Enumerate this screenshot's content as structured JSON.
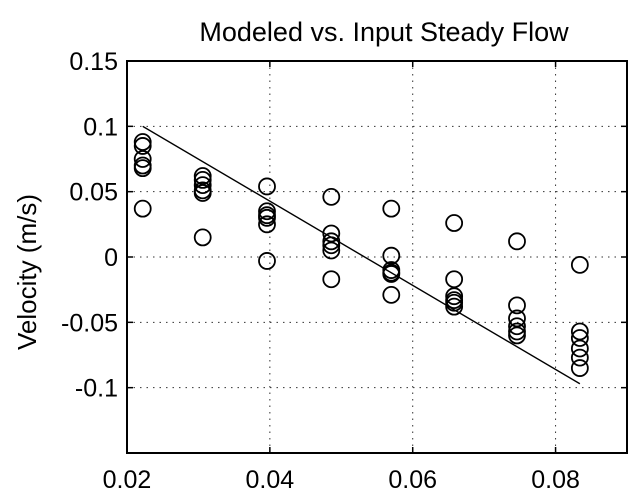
{
  "chart_data": {
    "type": "scatter",
    "title": "Modeled vs. Input Steady Flow",
    "xlabel": "",
    "ylabel": "Velocity (m/s)",
    "xlim": [
      0.02,
      0.09
    ],
    "ylim": [
      -0.15,
      0.15
    ],
    "xticks": [
      0.02,
      0.04,
      0.06,
      0.08
    ],
    "xtick_labels": [
      "0.02",
      "0.04",
      "0.06",
      "0.08"
    ],
    "yticks": [
      -0.1,
      -0.05,
      0,
      0.05,
      0.1,
      0.15
    ],
    "ytick_labels": [
      "-0.1",
      "-0.05",
      "0",
      "0.05",
      "0.1",
      "0.15"
    ],
    "grid": true,
    "series": [
      {
        "marker": "circle",
        "points": [
          [
            0.0222,
            0.088
          ],
          [
            0.0222,
            0.085
          ],
          [
            0.0222,
            0.075
          ],
          [
            0.0222,
            0.07
          ],
          [
            0.0222,
            0.068
          ],
          [
            0.0222,
            0.037
          ],
          [
            0.0306,
            0.062
          ],
          [
            0.0306,
            0.059
          ],
          [
            0.0306,
            0.055
          ],
          [
            0.0306,
            0.051
          ],
          [
            0.0306,
            0.049
          ],
          [
            0.0306,
            0.015
          ],
          [
            0.0396,
            0.054
          ],
          [
            0.0396,
            0.035
          ],
          [
            0.0396,
            0.032
          ],
          [
            0.0396,
            0.03
          ],
          [
            0.0396,
            0.025
          ],
          [
            0.0396,
            -0.003
          ],
          [
            0.0486,
            0.046
          ],
          [
            0.0486,
            0.018
          ],
          [
            0.0486,
            0.012
          ],
          [
            0.0486,
            0.009
          ],
          [
            0.0486,
            0.005
          ],
          [
            0.0486,
            -0.017
          ],
          [
            0.057,
            0.037
          ],
          [
            0.057,
            0.001
          ],
          [
            0.057,
            -0.01
          ],
          [
            0.057,
            -0.012
          ],
          [
            0.057,
            -0.013
          ],
          [
            0.057,
            -0.029
          ],
          [
            0.0658,
            0.026
          ],
          [
            0.0658,
            -0.017
          ],
          [
            0.0658,
            -0.03
          ],
          [
            0.0658,
            -0.033
          ],
          [
            0.0658,
            -0.035
          ],
          [
            0.0658,
            -0.038
          ],
          [
            0.0746,
            0.012
          ],
          [
            0.0746,
            -0.037
          ],
          [
            0.0746,
            -0.047
          ],
          [
            0.0746,
            -0.053
          ],
          [
            0.0746,
            -0.057
          ],
          [
            0.0746,
            -0.06
          ],
          [
            0.0834,
            -0.006
          ],
          [
            0.0834,
            -0.057
          ],
          [
            0.0834,
            -0.062
          ],
          [
            0.0834,
            -0.07
          ],
          [
            0.0834,
            -0.077
          ],
          [
            0.0834,
            -0.085
          ]
        ]
      }
    ],
    "fit_line": [
      [
        0.0222,
        0.1
      ],
      [
        0.0834,
        -0.097
      ]
    ]
  }
}
